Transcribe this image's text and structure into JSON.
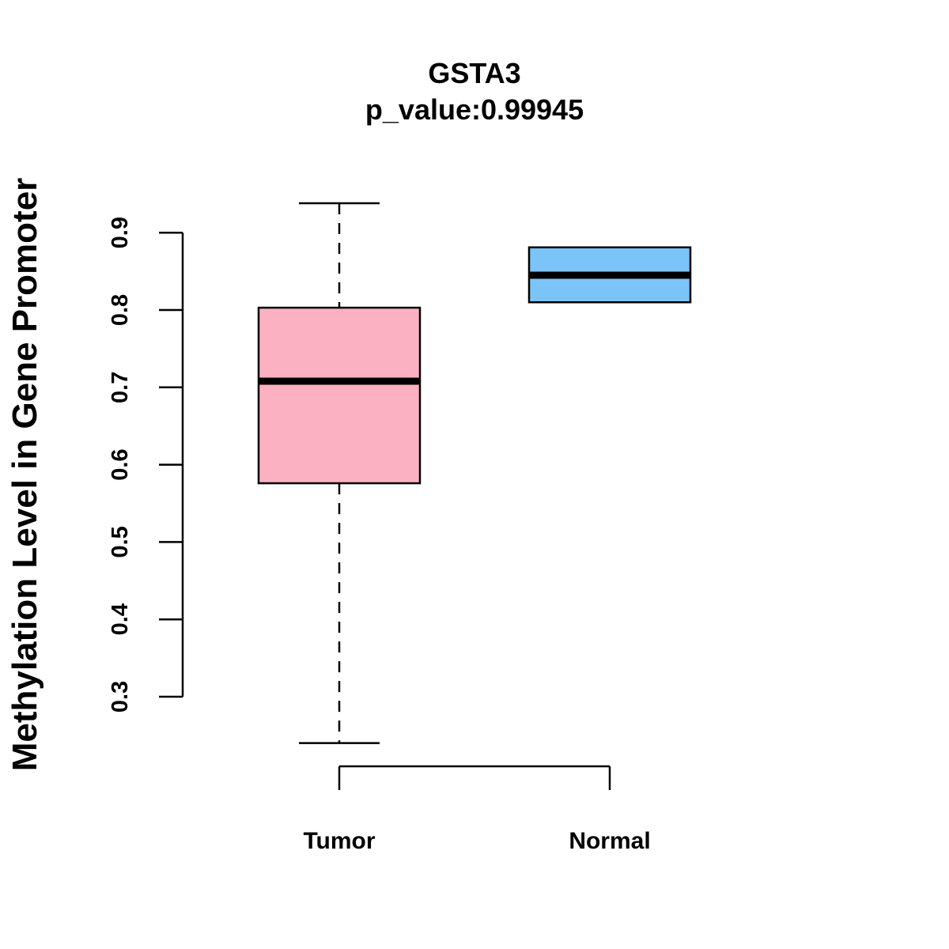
{
  "chart_data": {
    "type": "boxplot",
    "title": "GSTA3",
    "subtitle": "p_value:0.99945",
    "xlabel": "",
    "ylabel": "Methylation Level in Gene Promoter",
    "categories": [
      "Tumor",
      "Normal"
    ],
    "y_ticks": [
      "0.3",
      "0.4",
      "0.5",
      "0.6",
      "0.7",
      "0.8",
      "0.9"
    ],
    "ylim": [
      0.3,
      0.9
    ],
    "series": [
      {
        "name": "Tumor",
        "color": "#FBB1C2",
        "whisker_low": 0.24,
        "q1": 0.576,
        "median": 0.708,
        "q3": 0.803,
        "whisker_high": 0.938
      },
      {
        "name": "Normal",
        "color": "#7BC4F8",
        "whisker_low": 0.81,
        "q1": 0.81,
        "median": 0.845,
        "q3": 0.881,
        "whisker_high": 0.881
      }
    ]
  }
}
